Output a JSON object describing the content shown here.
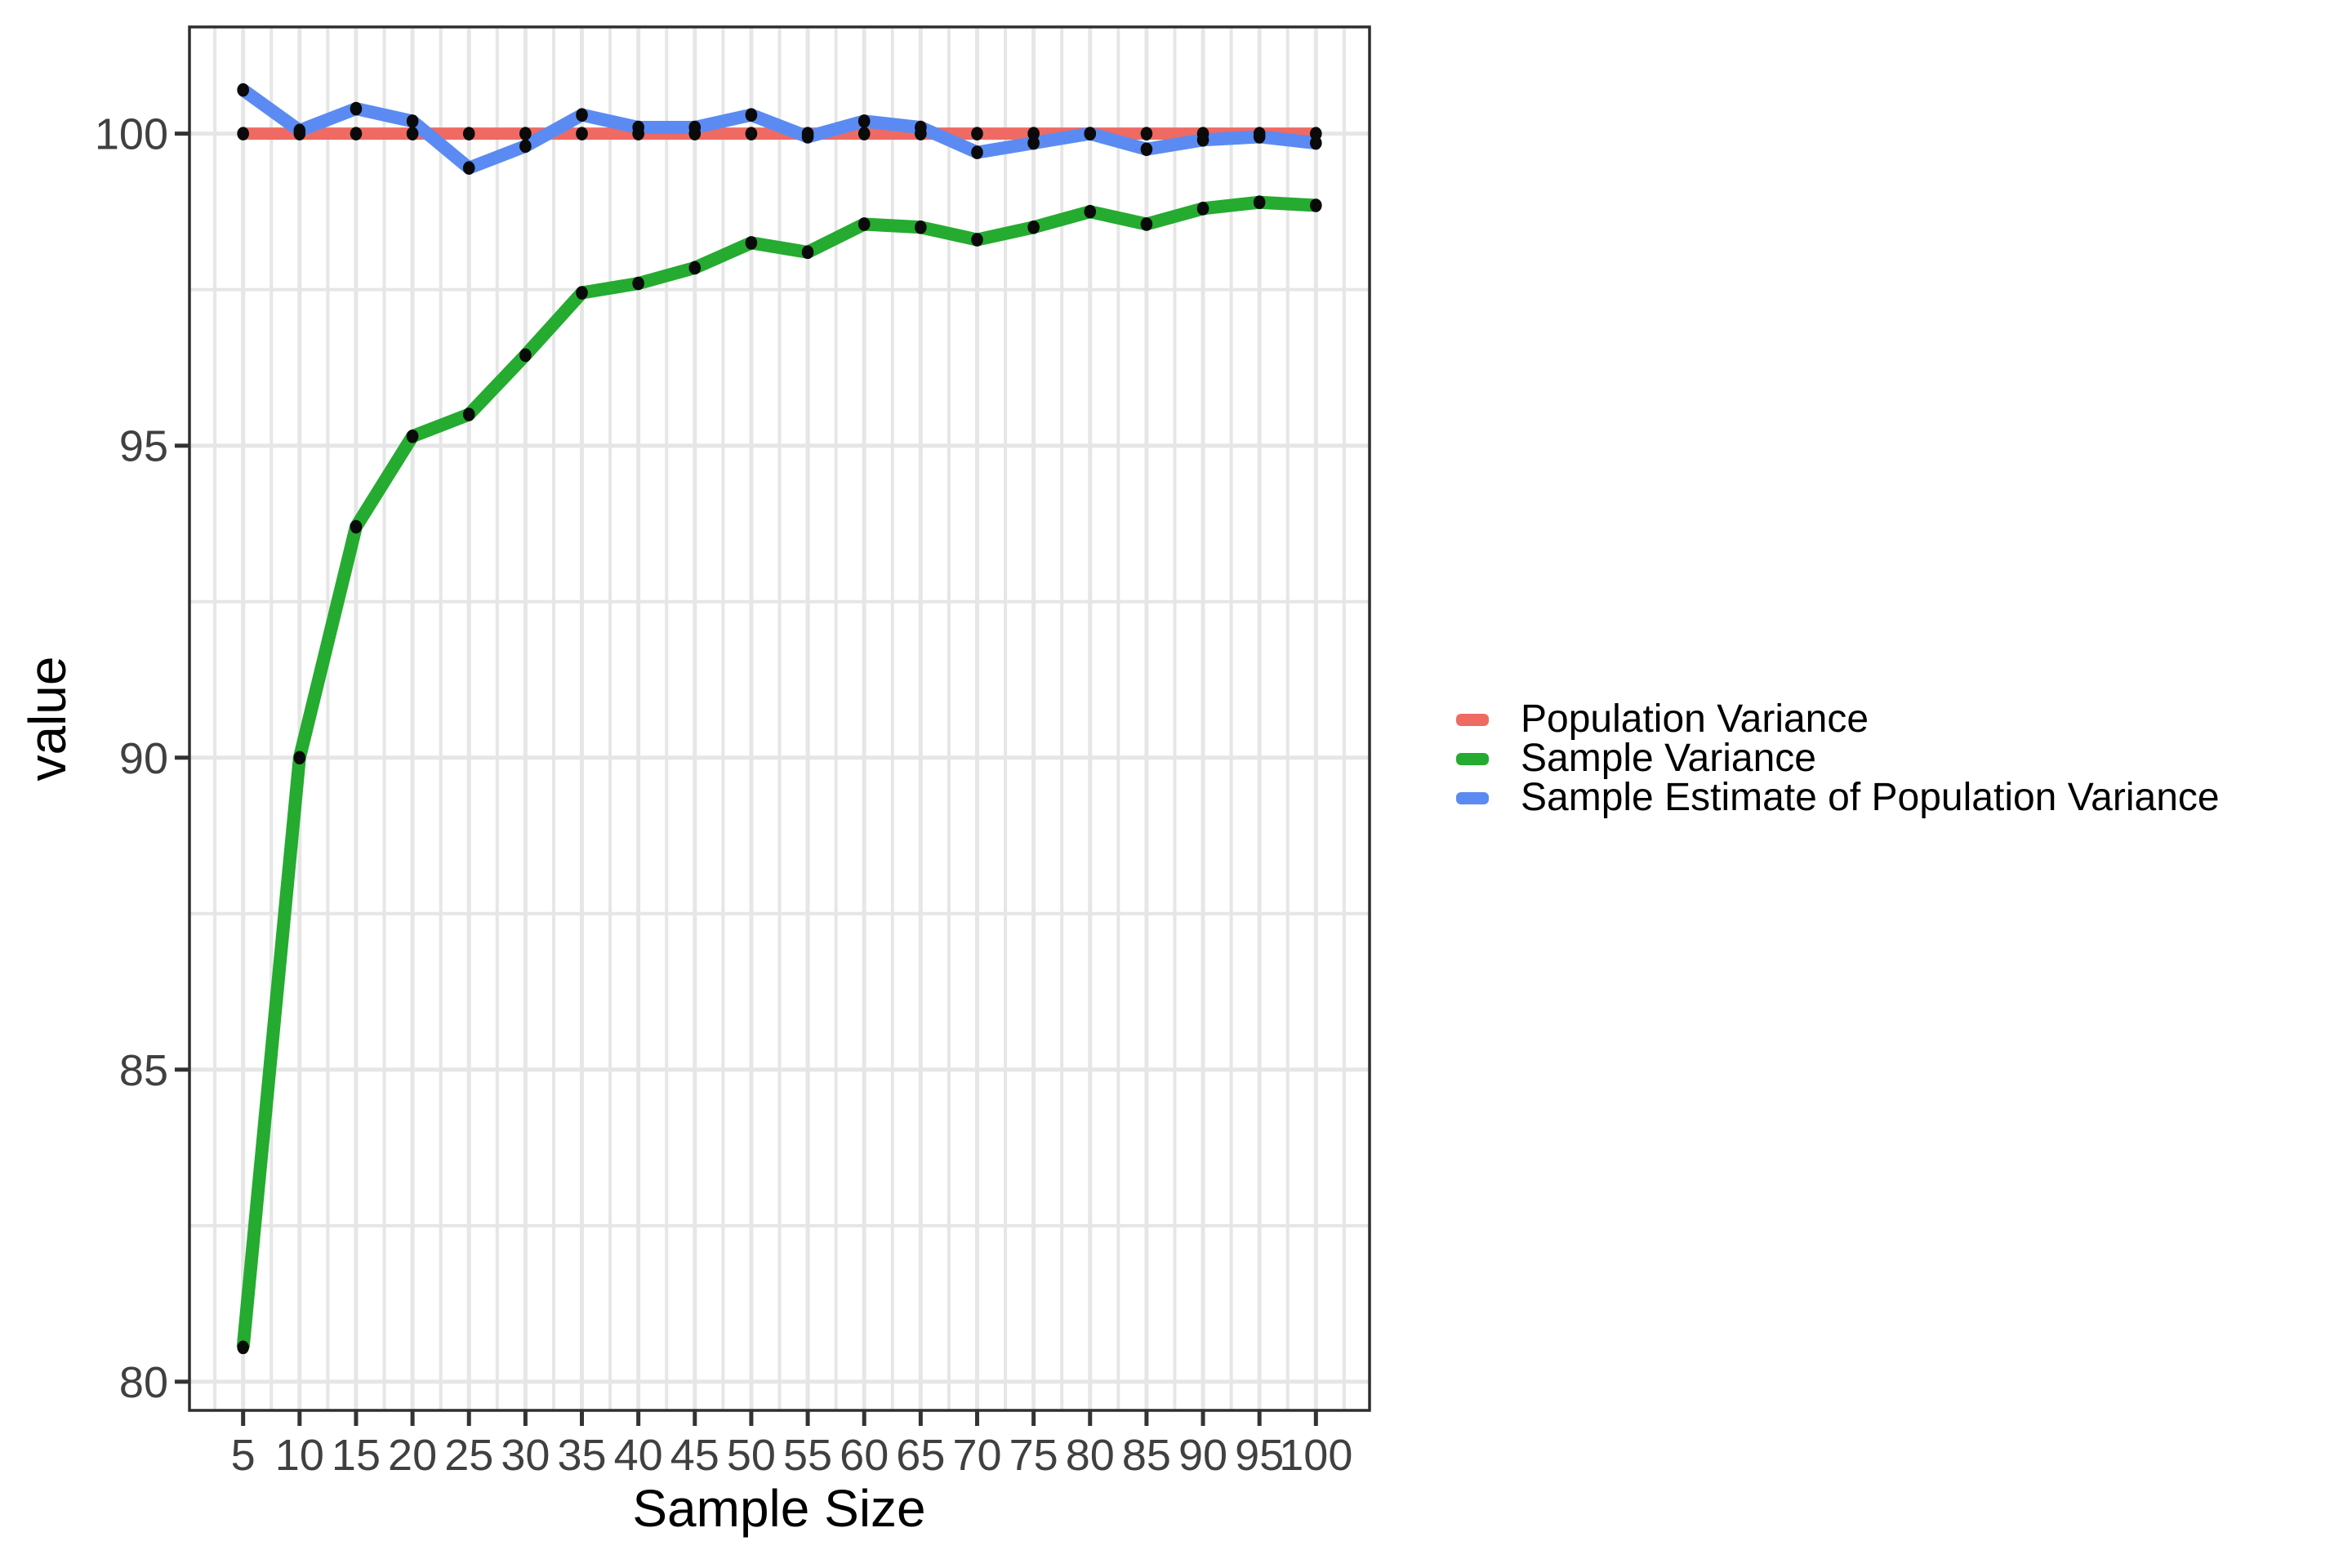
{
  "figure": {
    "background": "#ffffff"
  },
  "axes": {
    "x_title": "Sample Size",
    "y_title": "value",
    "tick_label_color": "#404040",
    "title_color": "#000000"
  },
  "legend": {
    "position": "right",
    "items": [
      {
        "label": "Population Variance",
        "color": "#EF6A63"
      },
      {
        "label": "Sample Variance",
        "color": "#24AB30"
      },
      {
        "label": "Sample Estimate of Population Variance",
        "color": "#5B8BF2"
      }
    ]
  },
  "chart_data": {
    "type": "line",
    "title": "",
    "xlabel": "Sample Size",
    "ylabel": "value",
    "x": [
      5,
      10,
      15,
      20,
      25,
      30,
      35,
      40,
      45,
      50,
      55,
      60,
      65,
      70,
      75,
      80,
      85,
      90,
      95,
      100
    ],
    "series": [
      {
        "name": "Population Variance",
        "color": "#EF6A63",
        "values": [
          100,
          100,
          100,
          100,
          100,
          100,
          100,
          100,
          100,
          100,
          100,
          100,
          100,
          100,
          100,
          100,
          100,
          100,
          100,
          100
        ]
      },
      {
        "name": "Sample Variance",
        "color": "#24AB30",
        "values": [
          80.55,
          90.0,
          93.7,
          95.15,
          95.5,
          96.45,
          97.45,
          97.6,
          97.85,
          98.25,
          98.1,
          98.55,
          98.5,
          98.3,
          98.5,
          98.75,
          98.55,
          98.8,
          98.9,
          98.85
        ]
      },
      {
        "name": "Sample Estimate of Population Variance",
        "color": "#5B8BF2",
        "values": [
          100.7,
          100.05,
          100.4,
          100.2,
          99.45,
          99.8,
          100.3,
          100.1,
          100.1,
          100.3,
          99.95,
          100.2,
          100.1,
          99.7,
          99.85,
          100.0,
          99.75,
          99.9,
          99.95,
          99.85
        ]
      }
    ],
    "x_ticks": [
      5,
      10,
      15,
      20,
      25,
      30,
      35,
      40,
      45,
      50,
      55,
      60,
      65,
      70,
      75,
      80,
      85,
      90,
      95,
      100
    ],
    "y_ticks": [
      80,
      85,
      90,
      95,
      100
    ],
    "xlim": [
      0.25,
      104.75
    ],
    "ylim": [
      79.54,
      101.71
    ],
    "grid": {
      "major": true,
      "minor": true,
      "color": "#E6E6E6"
    },
    "legend_position": "right",
    "point_color": "#0A0A0A",
    "panel_border_color": "#2E2E2E",
    "tick_mark_color": "#333333"
  }
}
